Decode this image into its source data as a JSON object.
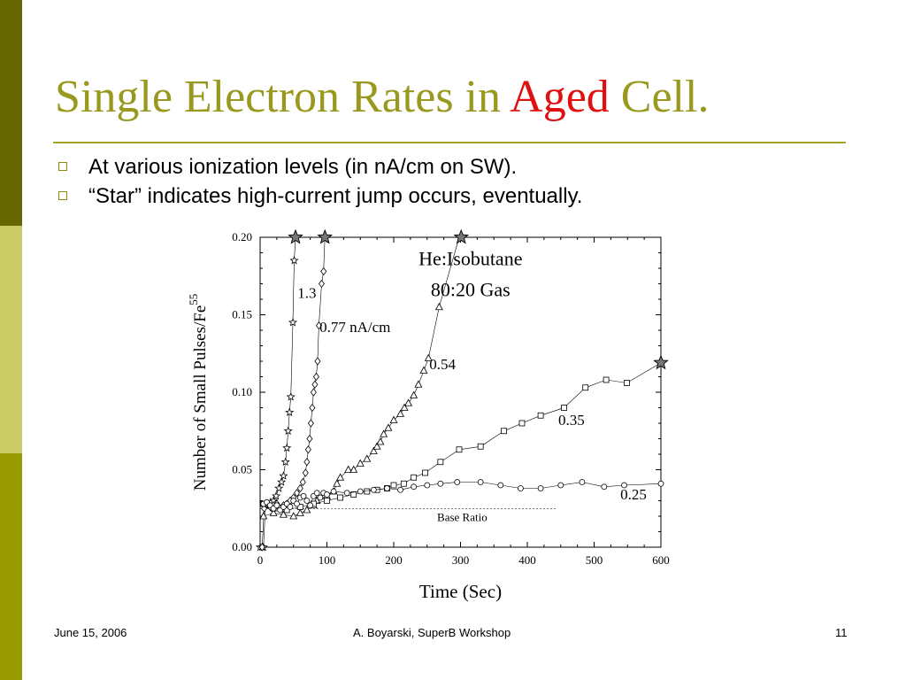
{
  "colors": {
    "side_band_top": "#666600",
    "side_band_middle": "#cccc66",
    "side_band_bottom": "#999900",
    "title": "#99991f",
    "title_accent": "#e01010",
    "bullet": "#8a8a12"
  },
  "slide": {
    "title_part1": "Single Electron Rates in ",
    "title_accent": "Aged",
    "title_part2": " Cell.",
    "bullets": [
      "At various ionization levels (in nA/cm on SW).",
      "“Star” indicates high-current jump occurs, eventually."
    ],
    "bullet_icon": "hollow-square-icon"
  },
  "footer": {
    "date": "June 15, 2006",
    "center": "A. Boyarski,  SuperB Workshop",
    "page": "11"
  },
  "chart_data": {
    "type": "scatter",
    "title": "",
    "xlabel": "Time (Sec)",
    "ylabel": "Number of Small Pulses/Fe",
    "ylabel_superscript": "55",
    "xlim": [
      0,
      600
    ],
    "ylim": [
      0,
      0.2
    ],
    "x_ticks": [
      0,
      100,
      200,
      300,
      400,
      500,
      600
    ],
    "x_tick_labels": [
      "0",
      "100",
      "200",
      "300",
      "400",
      "500",
      "600"
    ],
    "y_ticks": [
      0,
      0.05,
      0.1,
      0.15,
      0.2
    ],
    "y_tick_labels": [
      "0.00",
      "0.05",
      "0.10",
      "0.15",
      "0.20"
    ],
    "grid": false,
    "legend": "none",
    "annotations": {
      "gas_line1": "He:Isobutane",
      "gas_line2": "80:20 Gas",
      "base_ratio": "Base Ratio"
    },
    "base_ratio": {
      "y": 0.025,
      "x_from": 0,
      "x_to": 445
    },
    "series": [
      {
        "label": "1.3",
        "marker": "star",
        "points": [
          [
            0,
            0
          ],
          [
            3,
            0
          ],
          [
            5,
            0
          ],
          [
            8,
            0.027
          ],
          [
            12,
            0.028
          ],
          [
            16,
            0.029
          ],
          [
            20,
            0.03
          ],
          [
            24,
            0.033
          ],
          [
            28,
            0.038
          ],
          [
            32,
            0.042
          ],
          [
            35,
            0.046
          ],
          [
            38,
            0.055
          ],
          [
            40,
            0.064
          ],
          [
            42,
            0.075
          ],
          [
            44,
            0.087
          ],
          [
            46,
            0.097
          ],
          [
            49,
            0.145
          ],
          [
            51,
            0.185
          ],
          [
            53,
            0.2
          ]
        ],
        "jump_star": [
          53,
          0.2
        ]
      },
      {
        "label": "0.77 nA/cm",
        "marker": "diamond",
        "points": [
          [
            3,
            0
          ],
          [
            6,
            0.025
          ],
          [
            10,
            0.028
          ],
          [
            15,
            0.026
          ],
          [
            20,
            0.027
          ],
          [
            25,
            0.028
          ],
          [
            30,
            0.025
          ],
          [
            35,
            0.027
          ],
          [
            40,
            0.028
          ],
          [
            45,
            0.03
          ],
          [
            50,
            0.032
          ],
          [
            55,
            0.035
          ],
          [
            60,
            0.038
          ],
          [
            64,
            0.042
          ],
          [
            68,
            0.048
          ],
          [
            70,
            0.055
          ],
          [
            72,
            0.063
          ],
          [
            74,
            0.07
          ],
          [
            76,
            0.08
          ],
          [
            78,
            0.09
          ],
          [
            80,
            0.1
          ],
          [
            82,
            0.105
          ],
          [
            84,
            0.11
          ],
          [
            86,
            0.12
          ],
          [
            88,
            0.143
          ],
          [
            92,
            0.17
          ],
          [
            95,
            0.178
          ],
          [
            97,
            0.2
          ]
        ],
        "jump_star": [
          97,
          0.2
        ]
      },
      {
        "label": "0.54",
        "marker": "triangle",
        "points": [
          [
            5,
            0.02
          ],
          [
            20,
            0.022
          ],
          [
            35,
            0.021
          ],
          [
            50,
            0.02
          ],
          [
            60,
            0.022
          ],
          [
            70,
            0.024
          ],
          [
            80,
            0.027
          ],
          [
            85,
            0.03
          ],
          [
            100,
            0.033
          ],
          [
            110,
            0.036
          ],
          [
            115,
            0.041
          ],
          [
            120,
            0.045
          ],
          [
            132,
            0.05
          ],
          [
            140,
            0.05
          ],
          [
            150,
            0.054
          ],
          [
            160,
            0.057
          ],
          [
            170,
            0.062
          ],
          [
            175,
            0.065
          ],
          [
            180,
            0.068
          ],
          [
            185,
            0.073
          ],
          [
            192,
            0.077
          ],
          [
            200,
            0.082
          ],
          [
            210,
            0.086
          ],
          [
            216,
            0.09
          ],
          [
            222,
            0.093
          ],
          [
            230,
            0.098
          ],
          [
            237,
            0.105
          ],
          [
            245,
            0.114
          ],
          [
            252,
            0.122
          ],
          [
            268,
            0.155
          ],
          [
            298,
            0.2
          ]
        ],
        "jump_star": [
          301,
          0.2
        ]
      },
      {
        "label": "0.35",
        "marker": "square",
        "points": [
          [
            5,
            0.028
          ],
          [
            20,
            0.025
          ],
          [
            40,
            0.024
          ],
          [
            60,
            0.026
          ],
          [
            80,
            0.028
          ],
          [
            100,
            0.03
          ],
          [
            120,
            0.032
          ],
          [
            140,
            0.034
          ],
          [
            160,
            0.036
          ],
          [
            175,
            0.037
          ],
          [
            190,
            0.038
          ],
          [
            200,
            0.04
          ],
          [
            215,
            0.041
          ],
          [
            230,
            0.045
          ],
          [
            247,
            0.048
          ],
          [
            270,
            0.055
          ],
          [
            298,
            0.063
          ],
          [
            330,
            0.065
          ],
          [
            365,
            0.075
          ],
          [
            392,
            0.08
          ],
          [
            420,
            0.085
          ],
          [
            455,
            0.09
          ],
          [
            487,
            0.103
          ],
          [
            518,
            0.108
          ],
          [
            549,
            0.106
          ],
          [
            600,
            0.119
          ]
        ],
        "jump_star": [
          600,
          0.119
        ]
      },
      {
        "label": "0.25",
        "marker": "circle",
        "points": [
          [
            5,
            0.028
          ],
          [
            10,
            0.029
          ],
          [
            15,
            0.027
          ],
          [
            20,
            0.025
          ],
          [
            25,
            0.027
          ],
          [
            30,
            0.024
          ],
          [
            35,
            0.026
          ],
          [
            40,
            0.028
          ],
          [
            45,
            0.026
          ],
          [
            50,
            0.03
          ],
          [
            55,
            0.028
          ],
          [
            60,
            0.032
          ],
          [
            65,
            0.033
          ],
          [
            70,
            0.03
          ],
          [
            75,
            0.027
          ],
          [
            80,
            0.033
          ],
          [
            85,
            0.035
          ],
          [
            90,
            0.032
          ],
          [
            95,
            0.035
          ],
          [
            100,
            0.034
          ],
          [
            110,
            0.036
          ],
          [
            130,
            0.035
          ],
          [
            150,
            0.036
          ],
          [
            170,
            0.037
          ],
          [
            190,
            0.038
          ],
          [
            210,
            0.037
          ],
          [
            230,
            0.039
          ],
          [
            250,
            0.04
          ],
          [
            270,
            0.041
          ],
          [
            295,
            0.042
          ],
          [
            330,
            0.042
          ],
          [
            360,
            0.04
          ],
          [
            390,
            0.038
          ],
          [
            420,
            0.038
          ],
          [
            450,
            0.04
          ],
          [
            482,
            0.042
          ],
          [
            515,
            0.039
          ],
          [
            545,
            0.04
          ],
          [
            600,
            0.041
          ]
        ],
        "jump_star": null
      }
    ]
  }
}
